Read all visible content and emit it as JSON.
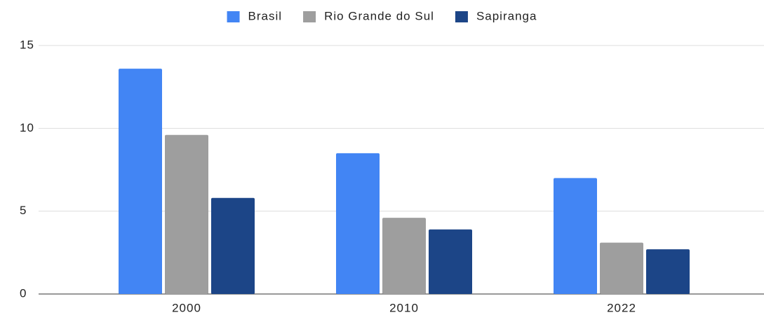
{
  "chart_data": {
    "type": "bar",
    "categories": [
      "2000",
      "2010",
      "2022"
    ],
    "series": [
      {
        "name": "Brasil",
        "color": "#4285f4",
        "values": [
          13.6,
          8.5,
          7.0
        ]
      },
      {
        "name": "Rio Grande do Sul",
        "color": "#9e9e9e",
        "values": [
          9.6,
          4.6,
          3.1
        ]
      },
      {
        "name": "Sapiranga",
        "color": "#1c4587",
        "values": [
          5.8,
          3.9,
          2.7
        ]
      }
    ],
    "ylim": [
      0,
      15
    ],
    "yticks": [
      0,
      5,
      10,
      15
    ],
    "grid": true,
    "legend": "top"
  }
}
